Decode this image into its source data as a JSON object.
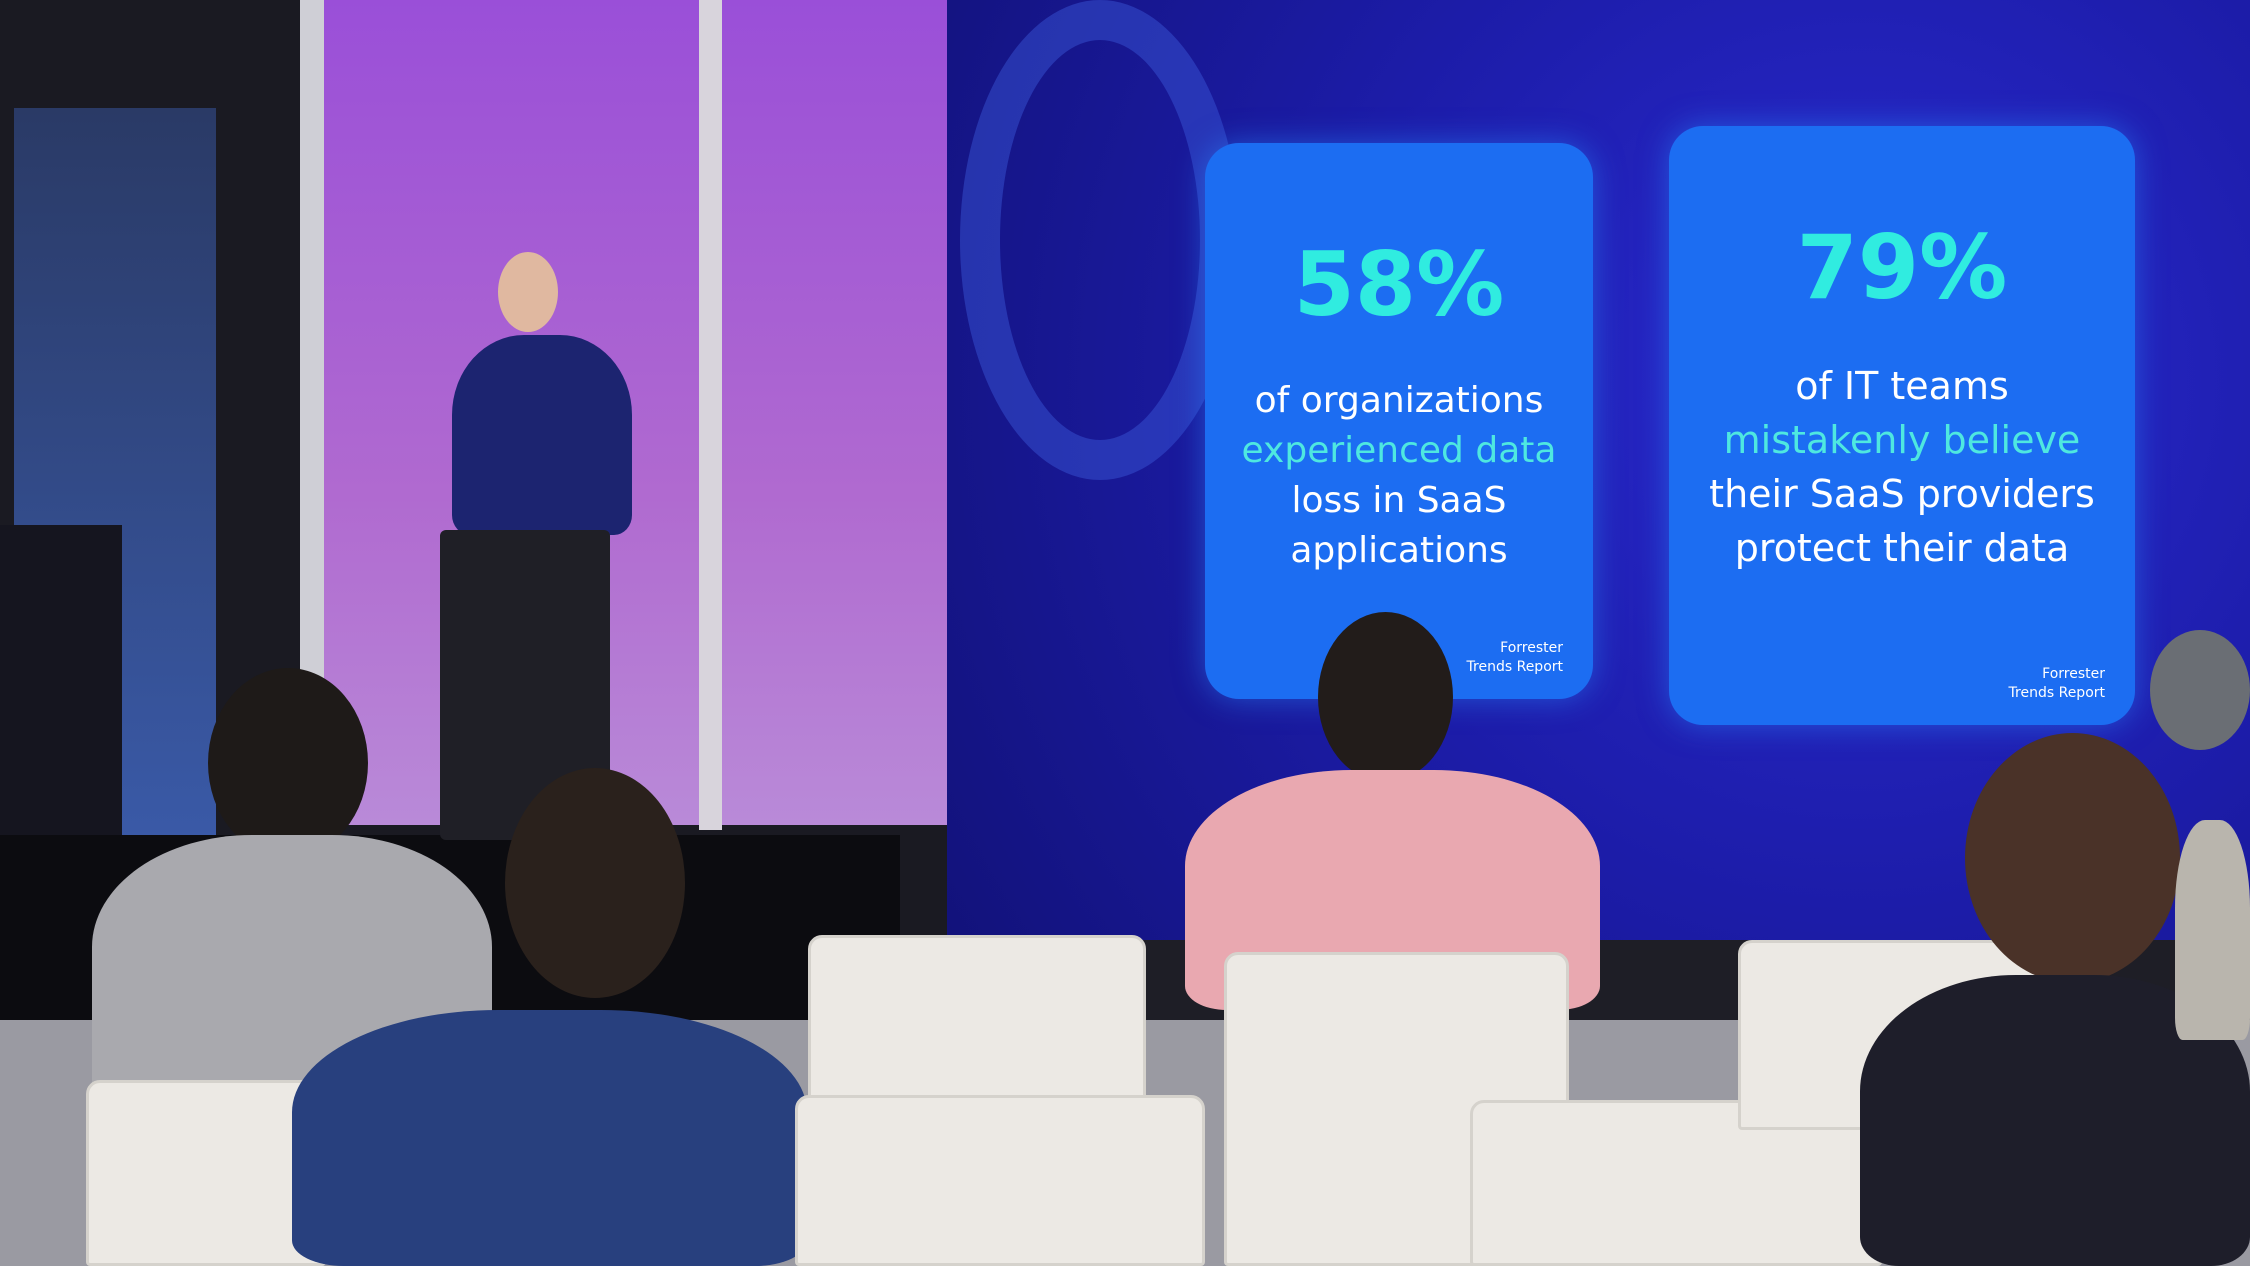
{
  "slide": {
    "cards": [
      {
        "percent": "58%",
        "line1": "of organizations",
        "highlight": "experienced data",
        "line3": "loss in SaaS",
        "line4": "applications",
        "source1": "Forrester",
        "source2": "Trends Report"
      },
      {
        "percent": "79%",
        "line1": "of IT teams",
        "highlight": "mistakenly believe",
        "line3": "their SaaS providers",
        "line4": "protect their data",
        "source1": "Forrester",
        "source2": "Trends Report"
      }
    ],
    "colors": {
      "card": "#1c6df2",
      "highlight": "#30ece0",
      "screen": "#1c1ca8",
      "wall": "#9a4fd8"
    }
  }
}
